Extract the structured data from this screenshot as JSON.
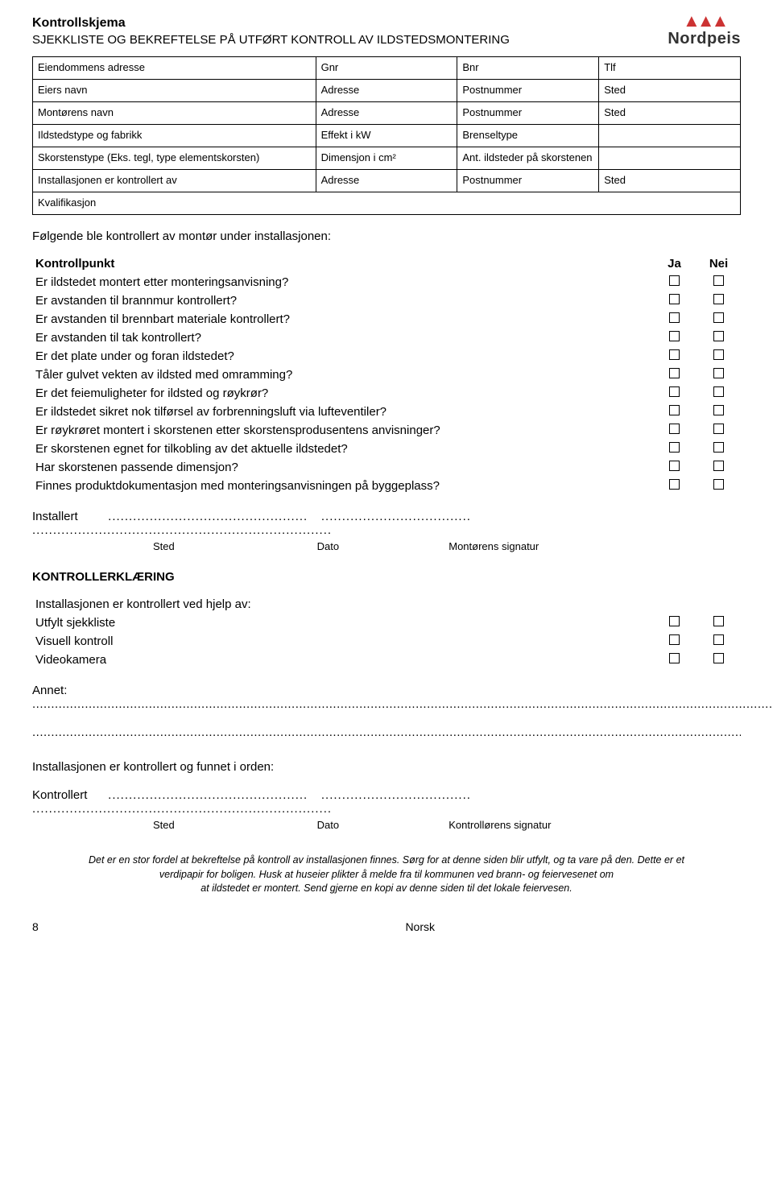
{
  "header": {
    "title": "Kontrollskjema",
    "subtitle": "SJEKKLISTE OG BEKREFTELSE PÅ UTFØRT KONTROLL AV ILDSTEDSMONTERING",
    "logo_name": "Nordpeis"
  },
  "grid": {
    "r1c1": "Eiendommens adresse",
    "r1c2": "Gnr",
    "r1c3": "Bnr",
    "r1c4": "Tlf",
    "r2c1": "Eiers navn",
    "r2c2": "Adresse",
    "r2c3": "Postnummer",
    "r2c4": "Sted",
    "r3c1": "Montørens navn",
    "r3c2": "Adresse",
    "r3c3": "Postnummer",
    "r3c4": "Sted",
    "r4c1": "Ildstedstype og fabrikk",
    "r4c2": "Effekt i kW",
    "r4c3": "Brenseltype",
    "r5c1": "Skorstenstype (Eks. tegl, type elementskorsten)",
    "r5c2": "Dimensjon i cm²",
    "r5c3": "Ant. ildsteder på skorstenen",
    "r6c1": "Installasjonen er kontrollert av",
    "r6c2": "Adresse",
    "r6c3": "Postnummer",
    "r6c4": "Sted",
    "r7c1": "Kvalifikasjon"
  },
  "lead1": "Følgende ble kontrollert av montør under installasjonen:",
  "check1": {
    "col_point": "Kontrollpunkt",
    "col_yes": "Ja",
    "col_no": "Nei",
    "rows": [
      "Er ildstedet montert etter monteringsanvisning?",
      "Er avstanden til brannmur kontrollert?",
      "Er avstanden til brennbart materiale kontrollert?",
      "Er avstanden til tak kontrollert?",
      "Er det plate under og foran ildstedet?",
      "Tåler gulvet vekten av ildsted med omramming?",
      "Er det feiemuligheter for ildsted og røykrør?",
      "Er ildstedet sikret nok tilførsel av forbrenningsluft via lufteventiler?",
      "Er røykrøret montert i skorstenen etter skorstensprodusentens anvisninger?",
      "Er skorstenen egnet for tilkobling av det aktuelle ildstedet?",
      "Har skorstenen passende dimensjon?",
      "Finnes produktdokumentasjon med monteringsanvisningen på byggeplass?"
    ]
  },
  "sig1": {
    "label": "Installert",
    "u1": "Sted",
    "u2": "Dato",
    "u3": "Montørens signatur"
  },
  "section2_head": "KONTROLLERKLÆRING",
  "check2": {
    "lead": "Installasjonen er kontrollert ved hjelp av:",
    "rows": [
      "Utfylt sjekkliste",
      "Visuell kontroll",
      "Videokamera"
    ]
  },
  "annet_label": "Annet:",
  "mid": "Installasjonen er kontrollert og funnet i orden:",
  "sig2": {
    "label": "Kontrollert",
    "u1": "Sted",
    "u2": "Dato",
    "u3": "Kontrollørens signatur"
  },
  "footer": {
    "l1": "Det er en stor fordel at bekreftelse på kontroll av installasjonen finnes. Sørg for at denne siden blir utfylt, og ta vare på den. Dette er et",
    "l2": "verdipapir for boligen. Husk at huseier plikter å melde fra til kommunen ved brann- og feiervesenet om",
    "l3": "at ildstedet er montert. Send gjerne en kopi av denne siden til det lokale feiervesen."
  },
  "pagefoot": {
    "num": "8",
    "lang": "Norsk"
  },
  "dots_short": "................................................",
  "dots_med": "....................................",
  "dots_long": "........................................................................",
  "dotline": "............................................................................................................................................................................................................",
  "dotline2": "..................................................................................................................................................................................................................."
}
